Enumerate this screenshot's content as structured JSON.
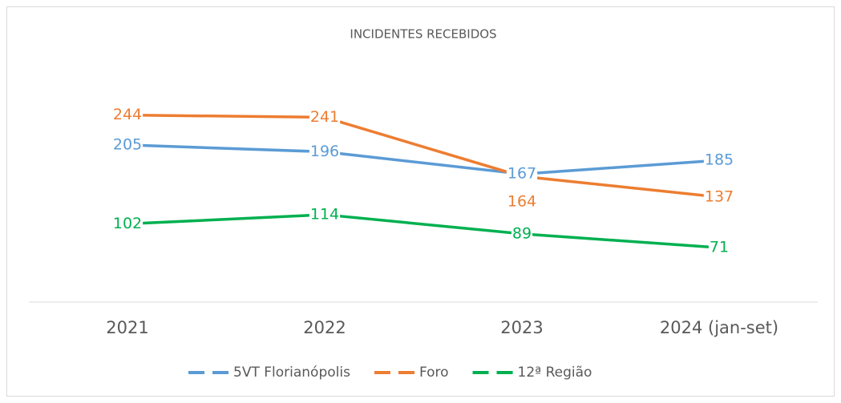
{
  "chart_data": {
    "type": "line",
    "title": "INCIDENTES RECEBIDOS",
    "categories": [
      "2021",
      "2022",
      "2023",
      "2024 (jan-set)"
    ],
    "series": [
      {
        "name": "5VT Florianópolis",
        "color": "#5b9bd5",
        "values": [
          205,
          196,
          167,
          185
        ]
      },
      {
        "name": "Foro",
        "color": "#ed7d31",
        "values": [
          244,
          241,
          164,
          137
        ]
      },
      {
        "name": "12ª Região",
        "color": "#00b050",
        "values": [
          102,
          114,
          89,
          71
        ]
      }
    ],
    "ylim": [
      0,
      300
    ],
    "legend": "bottom"
  }
}
